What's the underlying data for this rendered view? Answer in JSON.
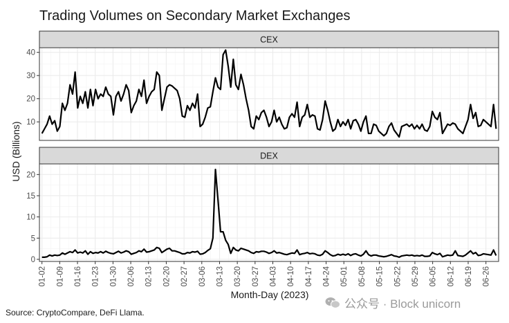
{
  "title": "Trading Volumes on Secondary Market Exchanges",
  "source": "Source: CryptoCompare, DeFi Llama.",
  "watermark": "公众号 · Block unicorn",
  "chart_data": {
    "type": "line",
    "xlabel": "Month-Day (2023)",
    "ylabel": "USD (Billions)",
    "x_range": [
      "01-01",
      "07-01"
    ],
    "x_ticks": [
      "01-02",
      "01-09",
      "01-16",
      "01-23",
      "01-30",
      "02-06",
      "02-13",
      "02-20",
      "02-27",
      "03-06",
      "03-13",
      "03-20",
      "03-27",
      "04-03",
      "04-10",
      "04-17",
      "04-24",
      "05-01",
      "05-08",
      "05-15",
      "05-22",
      "05-29",
      "06-05",
      "06-12",
      "06-19",
      "06-26"
    ],
    "colors": {
      "line": "#000000",
      "panel_bg": "#ffffff",
      "grid": "#ebebeb",
      "strip_bg": "#d9d9d9",
      "strip_border": "#333333"
    },
    "panels": [
      {
        "label": "CEX",
        "ylim": [
          2,
          42
        ],
        "y_ticks": [
          10,
          20,
          30,
          40
        ],
        "values": [
          5.0,
          7.0,
          9.0,
          12.5,
          9.0,
          10.5,
          6.0,
          8.0,
          18.0,
          15.0,
          18.0,
          26.0,
          22.0,
          31.5,
          16.0,
          21.0,
          18.0,
          23.0,
          16.0,
          24.0,
          17.0,
          24.0,
          20.0,
          22.0,
          21.0,
          25.0,
          22.0,
          21.0,
          13.0,
          21.0,
          23.0,
          19.0,
          22.0,
          26.0,
          23.5,
          14.0,
          17.0,
          19.0,
          24.0,
          21.0,
          28.0,
          18.0,
          21.0,
          23.0,
          24.0,
          31.5,
          30.0,
          15.0,
          20.0,
          25.0,
          26.0,
          25.5,
          24.5,
          23.5,
          20.0,
          12.5,
          12.0,
          17.0,
          15.0,
          18.0,
          16.0,
          22.0,
          8.0,
          9.0,
          12.0,
          16.0,
          16.5,
          23.0,
          29.0,
          25.0,
          24.0,
          39.0,
          41.0,
          34.0,
          25.0,
          37.0,
          26.0,
          24.0,
          30.5,
          26.0,
          20.0,
          15.0,
          8.0,
          7.0,
          12.5,
          11.0,
          14.0,
          15.0,
          12.0,
          8.0,
          10.0,
          15.0,
          10.0,
          12.0,
          9.0,
          7.0,
          7.5,
          12.0,
          13.5,
          12.0,
          18.5,
          8.0,
          12.0,
          13.0,
          17.5,
          12.0,
          13.0,
          12.5,
          7.0,
          6.5,
          11.0,
          19.0,
          15.0,
          10.0,
          6.0,
          7.0,
          11.0,
          8.0,
          10.0,
          8.5,
          11.0,
          7.0,
          10.5,
          11.0,
          9.0,
          6.0,
          10.0,
          12.5,
          5.0,
          5.0,
          9.0,
          8.5,
          6.0,
          5.0,
          4.0,
          5.0,
          8.0,
          9.5,
          6.5,
          5.0,
          3.5,
          8.0,
          8.5,
          9.0,
          8.0,
          9.0,
          7.0,
          8.5,
          7.0,
          9.0,
          6.5,
          6.0,
          8.0,
          14.5,
          12.0,
          11.0,
          14.0,
          5.0,
          7.0,
          9.0,
          8.5,
          9.5,
          9.0,
          7.0,
          6.0,
          5.0,
          8.0,
          11.0,
          17.5,
          11.5,
          14.0,
          8.0,
          8.5,
          11.0,
          10.0,
          9.0,
          8.0,
          17.5,
          7.0
        ]
      },
      {
        "label": "DEX",
        "ylim": [
          -0.5,
          22.5
        ],
        "y_ticks": [
          0,
          5,
          10,
          15,
          20
        ],
        "values": [
          0.5,
          0.5,
          0.6,
          1.0,
          0.8,
          1.0,
          0.9,
          1.0,
          1.5,
          1.2,
          1.5,
          1.8,
          1.6,
          2.2,
          1.5,
          1.7,
          1.5,
          2.0,
          1.2,
          1.8,
          1.4,
          1.6,
          1.5,
          1.8,
          1.5,
          1.9,
          1.6,
          1.4,
          1.3,
          1.6,
          1.9,
          1.5,
          1.7,
          2.0,
          1.8,
          1.2,
          1.4,
          1.6,
          2.0,
          1.8,
          2.4,
          1.7,
          1.8,
          2.0,
          2.2,
          2.8,
          2.6,
          1.6,
          2.0,
          2.4,
          2.6,
          2.0,
          2.0,
          1.8,
          1.6,
          1.3,
          1.3,
          1.6,
          1.5,
          1.8,
          1.7,
          1.9,
          1.2,
          1.3,
          1.6,
          2.1,
          2.5,
          5.0,
          21.2,
          14.0,
          6.5,
          6.5,
          4.5,
          3.5,
          1.4,
          2.8,
          2.2,
          2.0,
          2.6,
          2.4,
          2.2,
          2.0,
          1.6,
          1.4,
          1.8,
          1.7,
          1.9,
          1.9,
          1.7,
          1.4,
          1.6,
          2.0,
          1.5,
          1.6,
          1.4,
          1.2,
          1.1,
          1.3,
          1.5,
          1.4,
          2.2,
          1.1,
          1.3,
          1.4,
          1.6,
          1.3,
          1.4,
          1.3,
          1.0,
          0.9,
          1.2,
          2.0,
          1.6,
          1.1,
          0.8,
          0.9,
          1.2,
          1.0,
          1.2,
          1.0,
          1.3,
          0.9,
          1.2,
          1.3,
          1.0,
          0.8,
          1.2,
          2.0,
          1.1,
          0.8,
          1.0,
          1.0,
          0.8,
          0.7,
          0.6,
          0.7,
          0.9,
          1.1,
          0.8,
          0.7,
          0.5,
          0.8,
          0.9,
          1.0,
          0.9,
          1.0,
          0.8,
          0.9,
          0.8,
          1.0,
          0.7,
          0.7,
          0.8,
          1.6,
          1.3,
          1.1,
          1.4,
          0.6,
          0.8,
          1.0,
          0.9,
          1.0,
          2.0,
          0.9,
          0.8,
          0.7,
          1.0,
          1.5,
          2.0,
          1.3,
          1.6,
          0.9,
          1.0,
          1.3,
          1.2,
          1.1,
          1.0,
          2.2,
          0.9
        ]
      }
    ]
  }
}
